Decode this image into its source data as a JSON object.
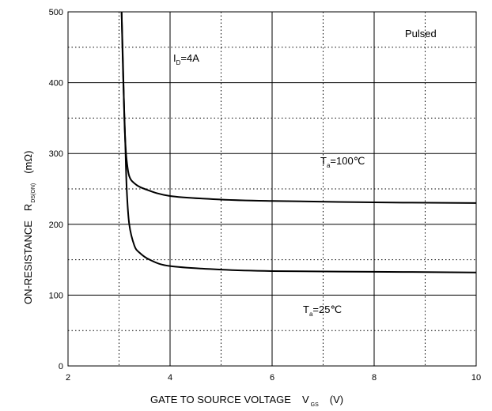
{
  "chart_data": {
    "type": "line",
    "xlabel": {
      "main": "GATE TO SOURCE VOLTAGE",
      "symbol": "V",
      "subscript": "GS",
      "unit": "(V)"
    },
    "ylabel": {
      "main": "ON-RESISTANCE",
      "symbol": "R",
      "subscript": "DS(ON)",
      "unit": "(mΩ)"
    },
    "xlim": [
      2,
      10
    ],
    "ylim": [
      0,
      500
    ],
    "xticks": [
      "2",
      "4",
      "6",
      "8",
      "10"
    ],
    "yticks": [
      "0",
      "100",
      "200",
      "300",
      "400",
      "500"
    ],
    "grid": "solid at major ticks, dotted at minor ticks",
    "annotations": {
      "pulsed": "Pulsed",
      "id": {
        "symbol": "I",
        "subscript": "D",
        "text": "=4A"
      }
    },
    "series": [
      {
        "name": "T_a=100℃",
        "label": {
          "symbol": "T",
          "subscript": "a",
          "text": "=100℃"
        },
        "x": [
          3.05,
          3.08,
          3.1,
          3.12,
          3.15,
          3.2,
          3.3,
          3.5,
          4.0,
          5.0,
          6.0,
          8.0,
          10.0
        ],
        "y": [
          500,
          420,
          360,
          320,
          290,
          268,
          258,
          250,
          240,
          235,
          233,
          231,
          230
        ]
      },
      {
        "name": "T_a=25℃",
        "label": {
          "symbol": "T",
          "subscript": "a",
          "text": "=25℃"
        },
        "x": [
          3.05,
          3.08,
          3.12,
          3.15,
          3.2,
          3.3,
          3.4,
          3.6,
          4.0,
          5.0,
          6.0,
          8.0,
          10.0
        ],
        "y": [
          500,
          410,
          320,
          250,
          200,
          170,
          160,
          150,
          141,
          136,
          134,
          133,
          132
        ]
      }
    ]
  }
}
